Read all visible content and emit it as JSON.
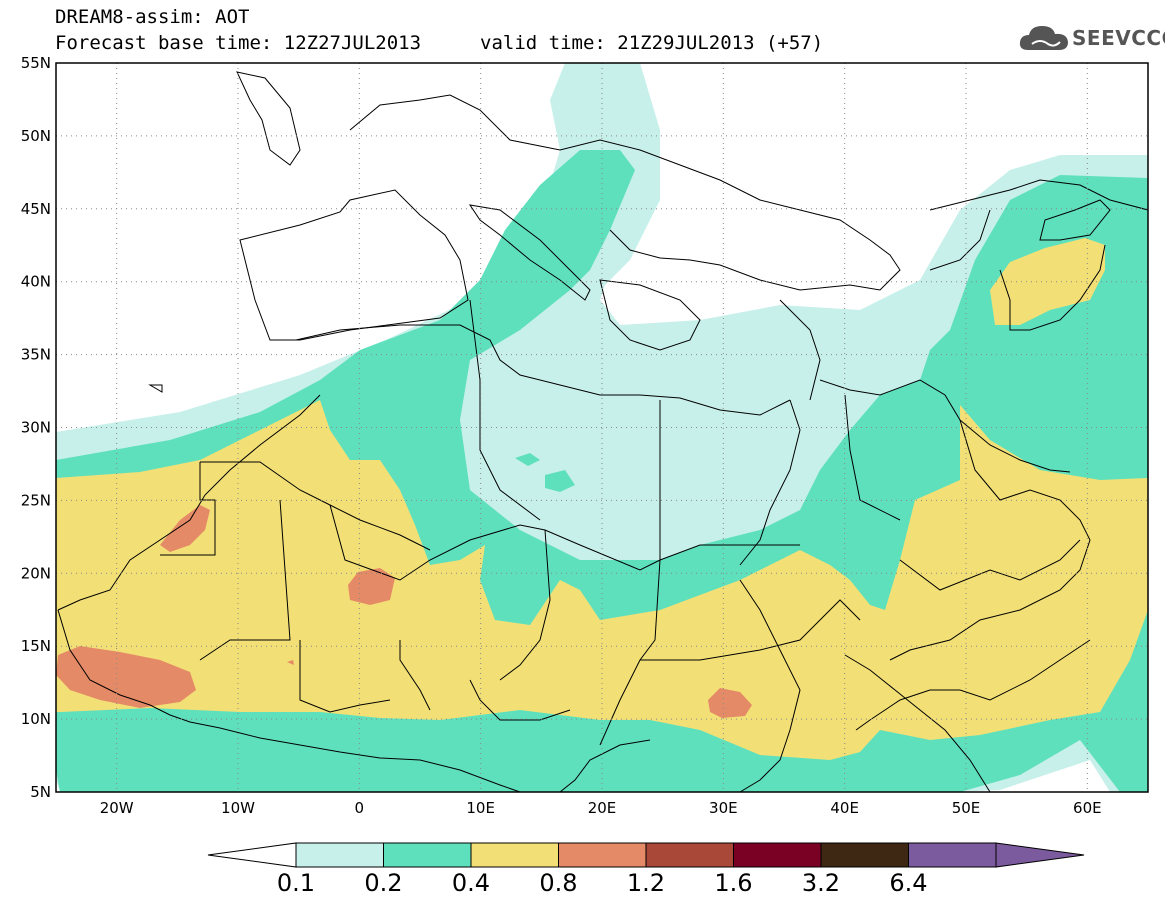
{
  "header": {
    "title_line1": "DREAM8-assim: AOT",
    "base_time": "Forecast base time: 12Z27JUL2013",
    "valid_time": "valid time: 21Z29JUL2013 (+57)",
    "logo_text": "SEEVCCC",
    "logo_icon": "cloud-icon"
  },
  "map": {
    "lon_range": [
      -25,
      65
    ],
    "lat_range": [
      5,
      55
    ],
    "lat_ticks": [
      {
        "lat": 55,
        "label": "55N"
      },
      {
        "lat": 50,
        "label": "50N"
      },
      {
        "lat": 45,
        "label": "45N"
      },
      {
        "lat": 40,
        "label": "40N"
      },
      {
        "lat": 35,
        "label": "35N"
      },
      {
        "lat": 30,
        "label": "30N"
      },
      {
        "lat": 25,
        "label": "25N"
      },
      {
        "lat": 20,
        "label": "20N"
      },
      {
        "lat": 15,
        "label": "15N"
      },
      {
        "lat": 10,
        "label": "10N"
      },
      {
        "lat": 5,
        "label": "5N"
      }
    ],
    "lon_ticks": [
      {
        "lon": -20,
        "label": "20W"
      },
      {
        "lon": -10,
        "label": "10W"
      },
      {
        "lon": 0,
        "label": "0"
      },
      {
        "lon": 10,
        "label": "10E"
      },
      {
        "lon": 20,
        "label": "20E"
      },
      {
        "lon": 30,
        "label": "30E"
      },
      {
        "lon": 40,
        "label": "40E"
      },
      {
        "lon": 50,
        "label": "50E"
      },
      {
        "lon": 60,
        "label": "60E"
      }
    ],
    "grid": "dotted",
    "levels": [
      {
        "min": 0.1,
        "color": "#c8f0ea"
      },
      {
        "min": 0.2,
        "color": "#5fe0bd"
      },
      {
        "min": 0.4,
        "color": "#f2e077"
      },
      {
        "min": 0.8,
        "color": "#e58a66"
      }
    ]
  },
  "colorbar": {
    "labels": [
      "0.1",
      "0.2",
      "0.4",
      "0.8",
      "1.2",
      "1.6",
      "3.2",
      "6.4"
    ],
    "colors": [
      "#ffffff",
      "#c8f0ea",
      "#5fe0bd",
      "#f2e077",
      "#e58a66",
      "#a94838",
      "#7a0024",
      "#3e2814",
      "#7b5a9e"
    ]
  }
}
